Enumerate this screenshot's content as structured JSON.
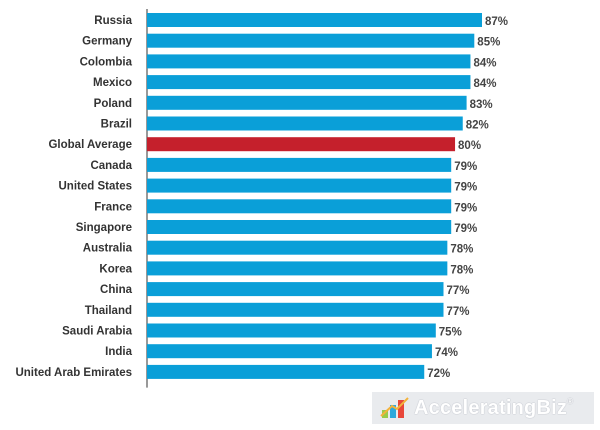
{
  "chart_data": {
    "type": "bar",
    "orientation": "horizontal",
    "categories": [
      "Russia",
      "Germany",
      "Colombia",
      "Mexico",
      "Poland",
      "Brazil",
      "Global Average",
      "Canada",
      "United States",
      "France",
      "Singapore",
      "Australia",
      "Korea",
      "China",
      "Thailand",
      "Saudi Arabia",
      "India",
      "United Arab Emirates"
    ],
    "values": [
      87,
      85,
      84,
      84,
      83,
      82,
      80,
      79,
      79,
      79,
      79,
      78,
      78,
      77,
      77,
      75,
      74,
      72
    ],
    "value_labels": [
      "87%",
      "85%",
      "84%",
      "84%",
      "83%",
      "82%",
      "80%",
      "79%",
      "79%",
      "79%",
      "79%",
      "78%",
      "78%",
      "77%",
      "77%",
      "75%",
      "74%",
      "72%"
    ],
    "title": "",
    "xlabel": "",
    "ylabel": "",
    "xlim": [
      0,
      87
    ],
    "grid": false,
    "legend": "none",
    "colors": {
      "bar": "#0a9fd8",
      "highlight": "#c5202c",
      "highlight_category": "Global Average"
    }
  },
  "watermark": {
    "text": "AcceleratingBiz",
    "mark": "®"
  }
}
